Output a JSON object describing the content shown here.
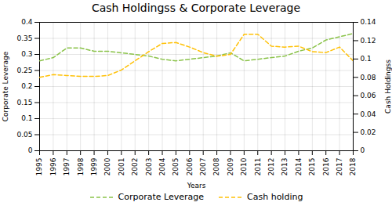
{
  "chart_data": {
    "type": "line",
    "title": "Cash Holdingss & Corporate Leverage",
    "x": [
      1995,
      1996,
      1997,
      1998,
      1999,
      2000,
      2001,
      2002,
      2003,
      2004,
      2005,
      2006,
      2007,
      2008,
      2009,
      2010,
      2011,
      2012,
      2013,
      2014,
      2015,
      2016,
      2017,
      2018
    ],
    "xlabel": "Years",
    "ylabel": "Corporate Leverage",
    "y2label": "Cash Holdingss",
    "xlim": [
      1995,
      2018
    ],
    "xticks": [
      1995,
      1996,
      1997,
      1998,
      1999,
      2000,
      2001,
      2002,
      2003,
      2004,
      2005,
      2006,
      2007,
      2008,
      2009,
      2010,
      2011,
      2012,
      2013,
      2014,
      2015,
      2016,
      2017,
      2018
    ],
    "ylim": [
      0,
      0.4
    ],
    "yticks": [
      0,
      0.05,
      0.1,
      0.15,
      0.2,
      0.25,
      0.3,
      0.35,
      0.4
    ],
    "y2lim": [
      0,
      0.14
    ],
    "y2ticks": [
      0,
      0.02,
      0.04,
      0.06,
      0.08,
      0.1,
      0.12,
      0.14
    ],
    "grid": true,
    "legend": "bottom",
    "series": [
      {
        "name": "Corporate Leverage",
        "color": "#8BC34A",
        "line_style": "dashed",
        "values": [
          0.28,
          0.29,
          0.32,
          0.32,
          0.31,
          0.31,
          0.305,
          0.3,
          0.295,
          0.285,
          0.28,
          0.285,
          0.29,
          0.295,
          0.305,
          0.28,
          0.285,
          0.29,
          0.295,
          0.31,
          0.32,
          0.345,
          0.355,
          0.365
        ]
      },
      {
        "name": "Cash holding",
        "color": "#FFC107",
        "line_style": "dashed",
        "axis": "y2",
        "values": [
          0.08,
          0.083,
          0.082,
          0.081,
          0.081,
          0.082,
          0.088,
          0.098,
          0.108,
          0.117,
          0.118,
          0.113,
          0.107,
          0.103,
          0.105,
          0.127,
          0.127,
          0.114,
          0.113,
          0.114,
          0.108,
          0.107,
          0.113,
          0.098
        ]
      }
    ]
  }
}
